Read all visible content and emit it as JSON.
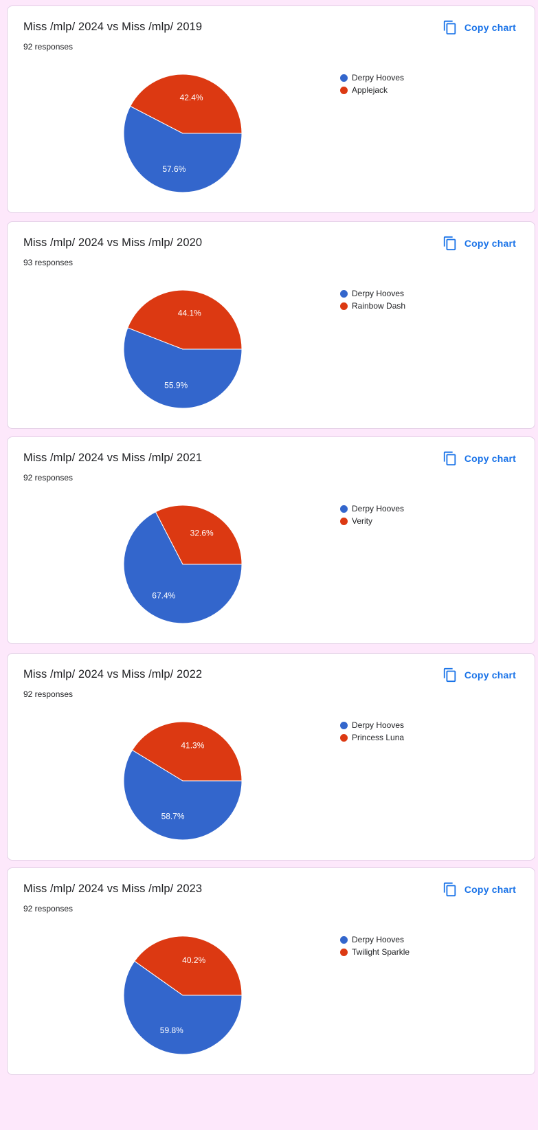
{
  "colors": {
    "background": "#fde8fb",
    "card": "#ffffff",
    "accent": "#1a73e8",
    "series": [
      "#3366cc",
      "#dc3912"
    ]
  },
  "copy_label": "Copy chart",
  "icons": {
    "copy": "copy-icon"
  },
  "cards": [
    {
      "title": "Miss /mlp/ 2024 vs Miss /mlp/ 2019",
      "responses": "92 responses"
    },
    {
      "title": "Miss /mlp/ 2024 vs Miss /mlp/ 2020",
      "responses": "93 responses"
    },
    {
      "title": "Miss /mlp/ 2024 vs Miss /mlp/ 2021",
      "responses": "92 responses"
    },
    {
      "title": "Miss /mlp/ 2024 vs Miss /mlp/ 2022",
      "responses": "92 responses"
    },
    {
      "title": "Miss /mlp/ 2024 vs Miss /mlp/ 2023",
      "responses": "92 responses"
    }
  ],
  "chart_data": [
    {
      "type": "pie",
      "title": "Miss /mlp/ 2024 vs Miss /mlp/ 2019",
      "labels": [
        "Derpy Hooves",
        "Applejack"
      ],
      "values": [
        57.6,
        42.4
      ],
      "value_labels": [
        "57.6%",
        "42.4%"
      ],
      "legend": "right"
    },
    {
      "type": "pie",
      "title": "Miss /mlp/ 2024 vs Miss /mlp/ 2020",
      "labels": [
        "Derpy Hooves",
        "Rainbow Dash"
      ],
      "values": [
        55.9,
        44.1
      ],
      "value_labels": [
        "55.9%",
        "44.1%"
      ],
      "legend": "right"
    },
    {
      "type": "pie",
      "title": "Miss /mlp/ 2024 vs Miss /mlp/ 2021",
      "labels": [
        "Derpy Hooves",
        "Verity"
      ],
      "values": [
        67.4,
        32.6
      ],
      "value_labels": [
        "67.4%",
        "32.6%"
      ],
      "legend": "right"
    },
    {
      "type": "pie",
      "title": "Miss /mlp/ 2024 vs Miss /mlp/ 2022",
      "labels": [
        "Derpy Hooves",
        "Princess Luna"
      ],
      "values": [
        58.7,
        41.3
      ],
      "value_labels": [
        "58.7%",
        "41.3%"
      ],
      "legend": "right"
    },
    {
      "type": "pie",
      "title": "Miss /mlp/ 2024 vs Miss /mlp/ 2023",
      "labels": [
        "Derpy Hooves",
        "Twilight Sparkle"
      ],
      "values": [
        59.8,
        40.2
      ],
      "value_labels": [
        "59.8%",
        "40.2%"
      ],
      "legend": "right"
    }
  ]
}
